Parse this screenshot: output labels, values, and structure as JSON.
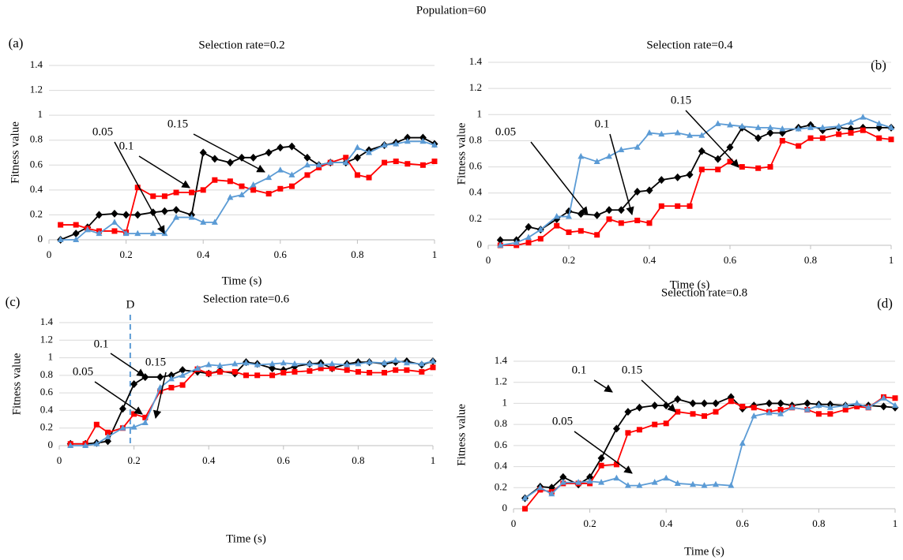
{
  "title": "Population=60",
  "chart_data": [
    {
      "type": "line",
      "panel": "(a)",
      "title": "Selection rate=0.2",
      "xlabel": "Time (s)",
      "ylabel": "Fitness value",
      "x": [
        0.03,
        0.07,
        0.1,
        0.13,
        0.17,
        0.2,
        0.23,
        0.27,
        0.3,
        0.33,
        0.37,
        0.4,
        0.43,
        0.47,
        0.5,
        0.53,
        0.57,
        0.6,
        0.63,
        0.67,
        0.7,
        0.73,
        0.77,
        0.8,
        0.83,
        0.87,
        0.9,
        0.93,
        0.97,
        1.0
      ],
      "xlim": [
        0,
        1
      ],
      "xticks": [
        0,
        0.2,
        0.4,
        0.6,
        0.8,
        1
      ],
      "ylim": [
        0,
        1.4
      ],
      "yticks": [
        0,
        0.2,
        0.4,
        0.6,
        0.8,
        1,
        1.2,
        1.4
      ],
      "grid": true,
      "annotations": [
        "0.05",
        "0.1",
        "0.15"
      ],
      "series": [
        {
          "color": "#000000",
          "marker": "diamond",
          "values": [
            0,
            0.05,
            0.1,
            0.2,
            0.21,
            0.2,
            0.2,
            0.22,
            0.23,
            0.24,
            0.2,
            0.7,
            0.65,
            0.62,
            0.66,
            0.66,
            0.7,
            0.74,
            0.75,
            0.66,
            0.6,
            0.62,
            0.62,
            0.66,
            0.72,
            0.76,
            0.78,
            0.82,
            0.82,
            0.77
          ]
        },
        {
          "color": "#ff0000",
          "marker": "square",
          "values": [
            0.12,
            0.12,
            0.09,
            0.07,
            0.07,
            0.06,
            0.42,
            0.35,
            0.35,
            0.38,
            0.38,
            0.4,
            0.48,
            0.47,
            0.43,
            0.4,
            0.37,
            0.41,
            0.43,
            0.52,
            0.58,
            0.62,
            0.66,
            0.52,
            0.5,
            0.62,
            0.63,
            0.61,
            0.6,
            0.63
          ]
        },
        {
          "color": "#5b9bd5",
          "marker": "triangle",
          "values": [
            0,
            0,
            0.08,
            0.05,
            0.14,
            0.05,
            0.05,
            0.05,
            0.05,
            0.18,
            0.18,
            0.14,
            0.14,
            0.34,
            0.36,
            0.44,
            0.5,
            0.56,
            0.52,
            0.6,
            0.6,
            0.62,
            0.62,
            0.74,
            0.7,
            0.76,
            0.77,
            0.79,
            0.79,
            0.76
          ]
        }
      ]
    },
    {
      "type": "line",
      "panel": "(b)",
      "title": "Selection rate=0.4",
      "xlabel": "Time (s)",
      "ylabel": "Fitness value",
      "x": [
        0.03,
        0.07,
        0.1,
        0.13,
        0.17,
        0.2,
        0.23,
        0.27,
        0.3,
        0.33,
        0.37,
        0.4,
        0.43,
        0.47,
        0.5,
        0.53,
        0.57,
        0.6,
        0.63,
        0.67,
        0.7,
        0.73,
        0.77,
        0.8,
        0.83,
        0.87,
        0.9,
        0.93,
        0.97,
        1.0
      ],
      "xlim": [
        0,
        1
      ],
      "xticks": [
        0,
        0.2,
        0.4,
        0.6,
        0.8,
        1
      ],
      "ylim": [
        0,
        1.4
      ],
      "yticks": [
        0,
        0.2,
        0.4,
        0.6,
        0.8,
        1,
        1.2,
        1.4
      ],
      "grid": true,
      "annotations": [
        "0.05",
        "0.1",
        "0.15"
      ],
      "series": [
        {
          "color": "#000000",
          "marker": "diamond",
          "values": [
            0.04,
            0.04,
            0.14,
            0.12,
            0.2,
            0.26,
            0.24,
            0.23,
            0.27,
            0.27,
            0.41,
            0.42,
            0.5,
            0.52,
            0.54,
            0.72,
            0.66,
            0.75,
            0.9,
            0.82,
            0.86,
            0.86,
            0.9,
            0.92,
            0.88,
            0.9,
            0.89,
            0.9,
            0.9,
            0.9
          ]
        },
        {
          "color": "#ff0000",
          "marker": "square",
          "values": [
            0,
            0,
            0.02,
            0.05,
            0.15,
            0.1,
            0.11,
            0.08,
            0.2,
            0.17,
            0.19,
            0.17,
            0.3,
            0.3,
            0.3,
            0.58,
            0.58,
            0.64,
            0.6,
            0.59,
            0.6,
            0.8,
            0.76,
            0.82,
            0.82,
            0.85,
            0.86,
            0.88,
            0.82,
            0.81
          ]
        },
        {
          "color": "#5b9bd5",
          "marker": "triangle",
          "values": [
            0,
            0.02,
            0.06,
            0.12,
            0.22,
            0.22,
            0.68,
            0.64,
            0.68,
            0.73,
            0.75,
            0.86,
            0.85,
            0.86,
            0.84,
            0.84,
            0.93,
            0.92,
            0.91,
            0.9,
            0.9,
            0.89,
            0.89,
            0.9,
            0.9,
            0.91,
            0.94,
            0.98,
            0.93,
            0.9
          ]
        }
      ]
    },
    {
      "type": "line",
      "panel": "(c)",
      "title": "Selection rate=0.6",
      "xlabel": "Time (s)",
      "ylabel": "Fitness value",
      "x": [
        0.03,
        0.07,
        0.1,
        0.13,
        0.17,
        0.2,
        0.23,
        0.27,
        0.3,
        0.33,
        0.37,
        0.4,
        0.43,
        0.47,
        0.5,
        0.53,
        0.57,
        0.6,
        0.63,
        0.67,
        0.7,
        0.73,
        0.77,
        0.8,
        0.83,
        0.87,
        0.9,
        0.93,
        0.97,
        1.0
      ],
      "xlim": [
        0,
        1
      ],
      "xticks": [
        0,
        0.2,
        0.4,
        0.6,
        0.8,
        1
      ],
      "ylim": [
        0,
        1.4
      ],
      "yticks": [
        0,
        0.2,
        0.4,
        0.6,
        0.8,
        1,
        1.2,
        1.4
      ],
      "grid": true,
      "annotations": [
        "0.05",
        "0.1",
        "0.15"
      ],
      "vline": {
        "x": 0.19,
        "label": "D"
      },
      "series": [
        {
          "color": "#000000",
          "marker": "diamond",
          "values": [
            0.02,
            0.02,
            0.03,
            0.05,
            0.42,
            0.7,
            0.78,
            0.78,
            0.8,
            0.86,
            0.84,
            0.82,
            0.85,
            0.82,
            0.95,
            0.93,
            0.88,
            0.86,
            0.9,
            0.93,
            0.94,
            0.88,
            0.93,
            0.95,
            0.95,
            0.93,
            0.95,
            0.96,
            0.92,
            0.96
          ]
        },
        {
          "color": "#ff0000",
          "marker": "square",
          "values": [
            0.02,
            0.02,
            0.24,
            0.15,
            0.2,
            0.36,
            0.32,
            0.62,
            0.66,
            0.69,
            0.87,
            0.82,
            0.84,
            0.84,
            0.8,
            0.8,
            0.8,
            0.83,
            0.84,
            0.85,
            0.88,
            0.88,
            0.86,
            0.84,
            0.83,
            0.83,
            0.86,
            0.86,
            0.84,
            0.89
          ]
        },
        {
          "color": "#5b9bd5",
          "marker": "triangle",
          "values": [
            0,
            0,
            0.02,
            0.1,
            0.2,
            0.21,
            0.26,
            0.66,
            0.76,
            0.8,
            0.88,
            0.92,
            0.91,
            0.93,
            0.94,
            0.92,
            0.93,
            0.94,
            0.93,
            0.93,
            0.92,
            0.93,
            0.92,
            0.93,
            0.95,
            0.94,
            0.97,
            0.94,
            0.93,
            0.96
          ]
        }
      ]
    },
    {
      "type": "line",
      "panel": "(d)",
      "title": "Selection rate=0.8",
      "xlabel": "Time (s)",
      "ylabel": "Fitness value",
      "x": [
        0.03,
        0.07,
        0.1,
        0.13,
        0.17,
        0.2,
        0.23,
        0.27,
        0.3,
        0.33,
        0.37,
        0.4,
        0.43,
        0.47,
        0.5,
        0.53,
        0.57,
        0.6,
        0.63,
        0.67,
        0.7,
        0.73,
        0.77,
        0.8,
        0.83,
        0.87,
        0.9,
        0.93,
        0.97,
        1.0
      ],
      "xlim": [
        0,
        1
      ],
      "xticks": [
        0,
        0.2,
        0.4,
        0.6,
        0.8,
        1
      ],
      "ylim": [
        0,
        1.4
      ],
      "yticks": [
        0,
        0.2,
        0.4,
        0.6,
        0.8,
        1,
        1.2,
        1.4
      ],
      "grid": true,
      "annotations": [
        "0.05",
        "0.1",
        "0.15"
      ],
      "series": [
        {
          "color": "#000000",
          "marker": "diamond",
          "values": [
            0.1,
            0.21,
            0.2,
            0.3,
            0.23,
            0.3,
            0.48,
            0.76,
            0.92,
            0.96,
            0.98,
            0.98,
            1.04,
            1.0,
            1.0,
            1.0,
            1.06,
            0.95,
            0.98,
            1.0,
            1.0,
            0.98,
            1.0,
            0.99,
            0.99,
            0.98,
            0.98,
            0.98,
            0.97,
            0.96
          ]
        },
        {
          "color": "#ff0000",
          "marker": "square",
          "values": [
            0,
            0.18,
            0.16,
            0.24,
            0.24,
            0.24,
            0.41,
            0.42,
            0.72,
            0.75,
            0.8,
            0.81,
            0.92,
            0.9,
            0.88,
            0.92,
            1.02,
            0.97,
            0.96,
            0.92,
            0.94,
            0.96,
            0.94,
            0.9,
            0.9,
            0.94,
            0.97,
            0.96,
            1.06,
            1.05
          ]
        },
        {
          "color": "#5b9bd5",
          "marker": "triangle",
          "values": [
            0.1,
            0.2,
            0.14,
            0.25,
            0.25,
            0.26,
            0.25,
            0.29,
            0.22,
            0.22,
            0.25,
            0.29,
            0.24,
            0.23,
            0.22,
            0.23,
            0.22,
            0.62,
            0.88,
            0.91,
            0.9,
            0.96,
            0.94,
            0.98,
            0.96,
            0.98,
            1.0,
            0.96,
            1.05,
            0.98
          ]
        }
      ]
    }
  ]
}
